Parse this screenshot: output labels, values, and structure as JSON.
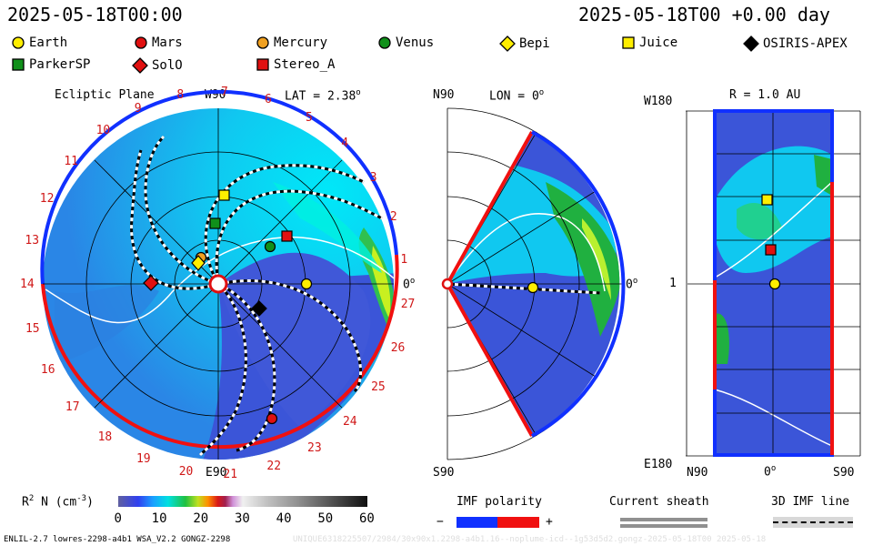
{
  "header": {
    "time_left": "2025-05-18T00:00",
    "time_right": "2025-05-18T00 +0.00 day"
  },
  "legend": [
    {
      "name": "Earth",
      "symbol": "circle",
      "color": "#ffee00"
    },
    {
      "name": "Mars",
      "symbol": "circle",
      "color": "#e01010"
    },
    {
      "name": "Mercury",
      "symbol": "circle",
      "color": "#f0a020"
    },
    {
      "name": "Venus",
      "symbol": "circle",
      "color": "#10901a"
    },
    {
      "name": "Bepi",
      "symbol": "diamond",
      "color": "#ffee00"
    },
    {
      "name": "Juice",
      "symbol": "square",
      "color": "#ffee00"
    },
    {
      "name": "OSIRIS-APEX",
      "symbol": "diamond",
      "color": "#000000"
    },
    {
      "name": "ParkerSP",
      "symbol": "square",
      "color": "#10901a"
    },
    {
      "name": "SolO",
      "symbol": "diamond",
      "color": "#e01010"
    },
    {
      "name": "Stereo_A",
      "symbol": "square",
      "color": "#e01010"
    }
  ],
  "panel_ecliptic": {
    "title": "Ecliptic Plane",
    "top_label": "W90",
    "bottom_label": "E90",
    "right_label": "0",
    "right_label_sup": "o",
    "lat_label": "LAT = 2.38",
    "lat_sup": "o",
    "carrington_numbers": [
      "1",
      "2",
      "3",
      "4",
      "5",
      "6",
      "7",
      "8",
      "9",
      "10",
      "11",
      "12",
      "13",
      "14",
      "15",
      "16",
      "17",
      "18",
      "19",
      "20",
      "21",
      "22",
      "23",
      "24",
      "25",
      "26",
      "27"
    ]
  },
  "panel_meridional": {
    "lon_label": "LON = 0",
    "lon_sup": "o",
    "top_label": "N90",
    "bottom_label": "S90",
    "right_label": "0",
    "right_label_sup": "o"
  },
  "panel_radial": {
    "title": "R = 1.0 AU",
    "top_left": "W180",
    "mid_left": "1",
    "bottom_left": "E180",
    "x_left": "N90",
    "x_mid": "0",
    "x_mid_sup": "o",
    "x_right": "S90"
  },
  "colorbar": {
    "label_main": "R",
    "label_sup": "2",
    "label_rest": " N (cm",
    "label_exp": "-3",
    "label_close": ")",
    "ticks": [
      "0",
      "10",
      "20",
      "30",
      "40",
      "50",
      "60"
    ],
    "range": [
      0,
      60
    ]
  },
  "imf_polarity": {
    "title": "IMF polarity",
    "minus": "−",
    "plus": "+"
  },
  "current_sheath": {
    "title": "Current sheath"
  },
  "imf_line": {
    "title": "3D IMF line"
  },
  "footer": {
    "left": "ENLIL-2.7 lowres-2298-a4b1 WSA_V2.2 GONGZ-2298",
    "right": "UNIQUE6318225507/2984/30x90x1.2298-a4b1.16--noplume-icd--1g53d5d2.gongz-2025-05-18T00   2025-05-18"
  },
  "colors": {
    "cold": "#3b55d8",
    "cyan": "#00e0f0",
    "green": "#20b040",
    "positive": "#f01010",
    "negative": "#1030ff"
  }
}
